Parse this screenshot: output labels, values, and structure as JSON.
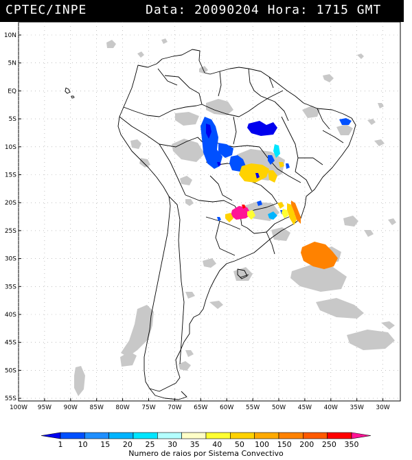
{
  "header": {
    "agency": "CPTEC/INPE",
    "date_label": "Data:",
    "date_value": "20090204",
    "hour_label": "Hora:",
    "hour_value": "1715 GMT"
  },
  "map": {
    "lat_labels": [
      "10N",
      "5N",
      "EQ",
      "5S",
      "10S",
      "15S",
      "20S",
      "25S",
      "30S",
      "35S",
      "40S",
      "45S",
      "50S",
      "55S"
    ],
    "lon_labels": [
      "100W",
      "95W",
      "90W",
      "85W",
      "80W",
      "75W",
      "70W",
      "65W",
      "60W",
      "55W",
      "50W",
      "45W",
      "40W",
      "35W",
      "30W"
    ],
    "grid": "dotted",
    "cloud_color": "#c8c8c8",
    "coast_color": "#000000"
  },
  "legend": {
    "labels": [
      "1",
      "10",
      "15",
      "20",
      "25",
      "30",
      "35",
      "40",
      "50",
      "100",
      "150",
      "200",
      "250",
      "350"
    ],
    "colors": [
      "#0000ee",
      "#0050ff",
      "#1f8fff",
      "#00b4ff",
      "#00e6ff",
      "#b4ffff",
      "#ffffc8",
      "#ffff32",
      "#ffd200",
      "#ffaa00",
      "#ff8200",
      "#ff5a00",
      "#ff0000",
      "#ff1496"
    ],
    "caption": "Numero de raios por Sistema Convectivo"
  }
}
